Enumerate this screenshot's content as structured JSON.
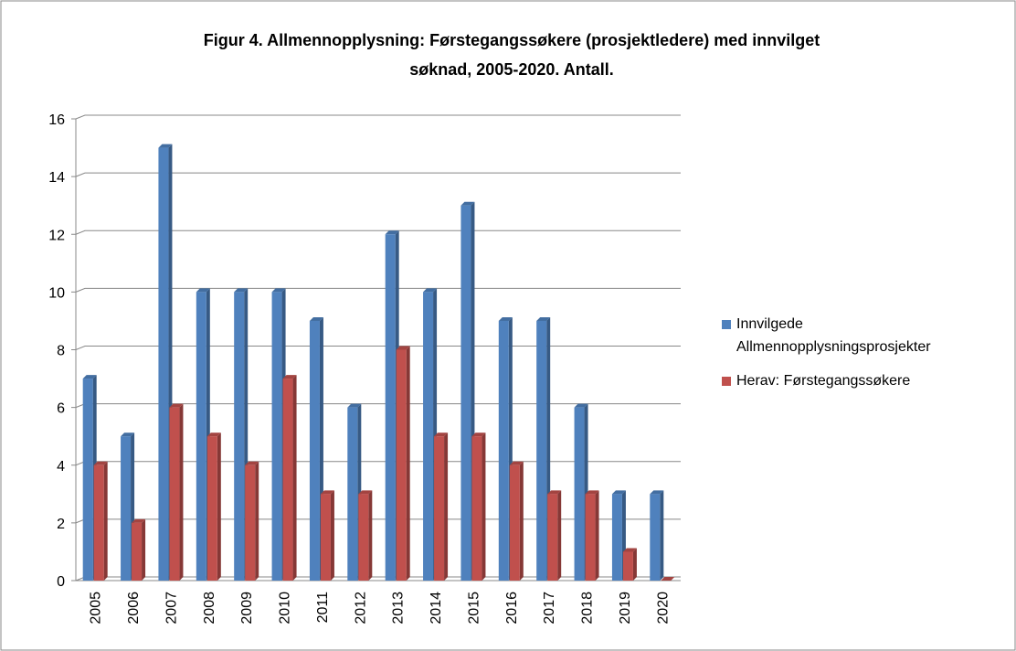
{
  "chart_data": {
    "type": "bar",
    "title": [
      "Figur 4. Allmennopplysning: Førstegangssøkere (prosjektledere) med innvilget",
      "søknad, 2005-2020. Antall."
    ],
    "categories": [
      "2005",
      "2006",
      "2007",
      "2008",
      "2009",
      "2010",
      "2011",
      "2012",
      "2013",
      "2014",
      "2015",
      "2016",
      "2017",
      "2018",
      "2019",
      "2020"
    ],
    "series": [
      {
        "name": "Innvilgede Allmennopplysningsprosjekter",
        "color": "#4f81bd",
        "values": [
          7,
          5,
          15,
          10,
          10,
          10,
          9,
          6,
          12,
          10,
          13,
          9,
          9,
          6,
          3,
          3
        ]
      },
      {
        "name": "Herav: Førstegangssøkere",
        "color": "#c0504d",
        "values": [
          4,
          2,
          6,
          5,
          4,
          7,
          3,
          3,
          8,
          5,
          5,
          4,
          3,
          3,
          1,
          0
        ]
      }
    ],
    "ylim": [
      0,
      16
    ],
    "yticks": [
      0,
      2,
      4,
      6,
      8,
      10,
      12,
      14,
      16
    ],
    "grid": true,
    "legend": "right"
  }
}
